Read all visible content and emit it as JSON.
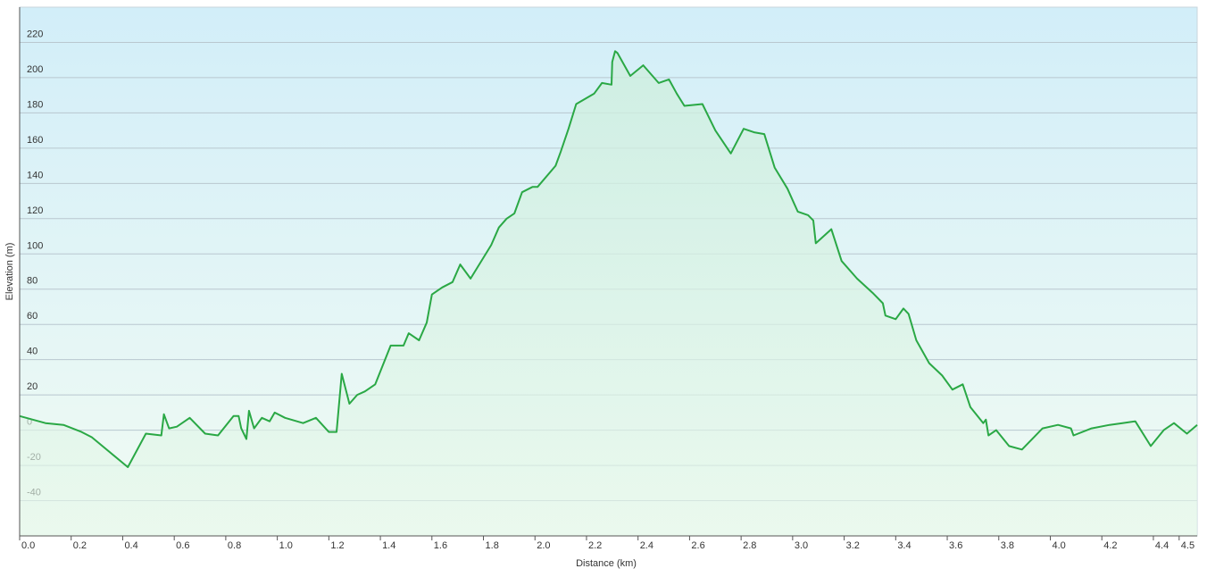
{
  "chart_data": {
    "type": "area",
    "xlabel": "Distance  (km)",
    "ylabel": "Elevation (m)",
    "color": "#2aa845",
    "x": [
      0,
      0.1,
      0.17,
      0.24,
      0.28,
      0.42,
      0.49,
      0.55,
      0.56,
      0.58,
      0.61,
      0.66,
      0.72,
      0.77,
      0.83,
      0.85,
      0.86,
      0.88,
      0.89,
      0.91,
      0.94,
      0.97,
      0.99,
      1.03,
      1.1,
      1.15,
      1.2,
      1.23,
      1.25,
      1.28,
      1.31,
      1.34,
      1.38,
      1.44,
      1.49,
      1.51,
      1.55,
      1.58,
      1.6,
      1.64,
      1.68,
      1.71,
      1.75,
      1.83,
      1.86,
      1.89,
      1.92,
      1.95,
      1.99,
      2.01,
      2.08,
      2.1,
      2.13,
      2.16,
      2.23,
      2.26,
      2.297,
      2.3,
      2.311,
      2.32,
      2.37,
      2.42,
      2.48,
      2.52,
      2.55,
      2.58,
      2.65,
      2.7,
      2.76,
      2.81,
      2.85,
      2.89,
      2.93,
      2.98,
      3.02,
      3.06,
      3.08,
      3.09,
      3.15,
      3.19,
      3.25,
      3.31,
      3.35,
      3.36,
      3.4,
      3.43,
      3.45,
      3.48,
      3.53,
      3.58,
      3.62,
      3.66,
      3.69,
      3.74,
      3.75,
      3.76,
      3.79,
      3.84,
      3.89,
      3.97,
      4.03,
      4.08,
      4.09,
      4.16,
      4.23,
      4.28,
      4.33,
      4.39,
      4.44,
      4.48,
      4.53,
      4.57
    ],
    "values": [
      8,
      4,
      3,
      -1,
      -4,
      -21,
      -2,
      -3,
      9,
      1,
      2,
      7,
      -2,
      -3,
      8,
      8,
      1,
      -5,
      11,
      1,
      7,
      5,
      10,
      7,
      4,
      7,
      -1,
      -1,
      32,
      15,
      20,
      22,
      26,
      48,
      48,
      55,
      51,
      61,
      77,
      81,
      84,
      94,
      86,
      105,
      115,
      120,
      123,
      135,
      138,
      138,
      150,
      158,
      171,
      185,
      191,
      197,
      196,
      209,
      215,
      214,
      201,
      207,
      197,
      199,
      191,
      184,
      185,
      170,
      157,
      171,
      169,
      168,
      149,
      137,
      124,
      122,
      119,
      106,
      114,
      96,
      86,
      78,
      72,
      65,
      63,
      69,
      66,
      51,
      38,
      31,
      23,
      26,
      13,
      4,
      6,
      -3,
      0,
      -9,
      -11,
      1,
      3,
      1,
      -3,
      1,
      3,
      4,
      5,
      -9,
      0,
      4,
      -2,
      3
    ],
    "xlim": [
      0,
      4.57
    ],
    "xticks": [
      {
        "value": 0,
        "label": "0.0"
      },
      0.2,
      0.4,
      0.6,
      0.8,
      {
        "value": 1,
        "label": "1.0"
      },
      1.2,
      1.4,
      1.6,
      1.8,
      {
        "value": 2,
        "label": "2.0"
      },
      2.2,
      2.4,
      2.6,
      2.8,
      {
        "value": 3,
        "label": "3.0"
      },
      3.2,
      3.4,
      3.6,
      3.8,
      {
        "value": 4,
        "label": "4.0"
      },
      4.2,
      4.4,
      4.5
    ],
    "ylim": [
      -60,
      240
    ],
    "yticks": [
      -40,
      -20,
      0,
      20,
      40,
      60,
      80,
      100,
      120,
      140,
      160,
      180,
      200,
      220
    ],
    "grid": true
  }
}
